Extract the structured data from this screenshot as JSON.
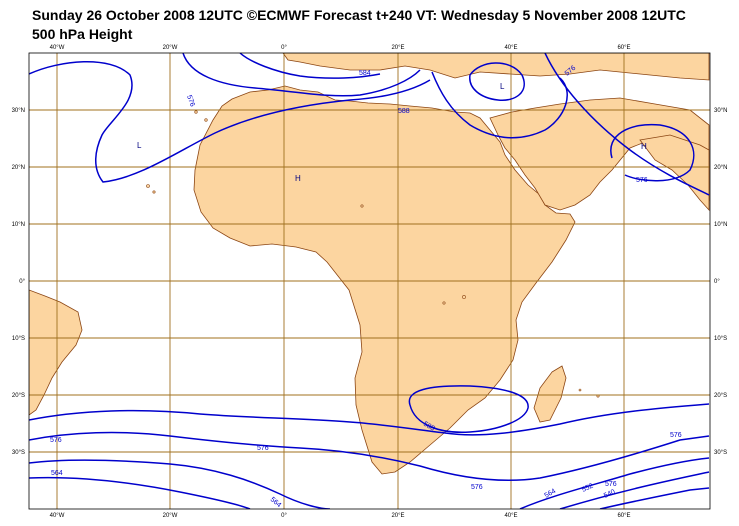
{
  "title_line1": "Sunday 26 October 2008 12UTC ©ECMWF Forecast t+240 VT: Wednesday 5 November 2008 12UTC",
  "title_line2": "500 hPa Height",
  "lon_labels": [
    "40°W",
    "20°W",
    "0°",
    "20°E",
    "40°E",
    "60°E"
  ],
  "lat_labels": [
    "30°N",
    "20°N",
    "10°N",
    "0°",
    "10°S",
    "20°S",
    "30°S"
  ],
  "contour_labels": [
    "576",
    "584",
    "588",
    "576",
    "576",
    "588",
    "576",
    "576",
    "576",
    "576",
    "564",
    "564",
    "576",
    "564",
    "552",
    "540",
    "576",
    "588"
  ],
  "centers": [
    "L",
    "H",
    "L",
    "H"
  ],
  "colors": {
    "land": "#fcd5a0",
    "contour": "#0000cc",
    "grid": "#a0701e",
    "coast": "#8b4513"
  }
}
